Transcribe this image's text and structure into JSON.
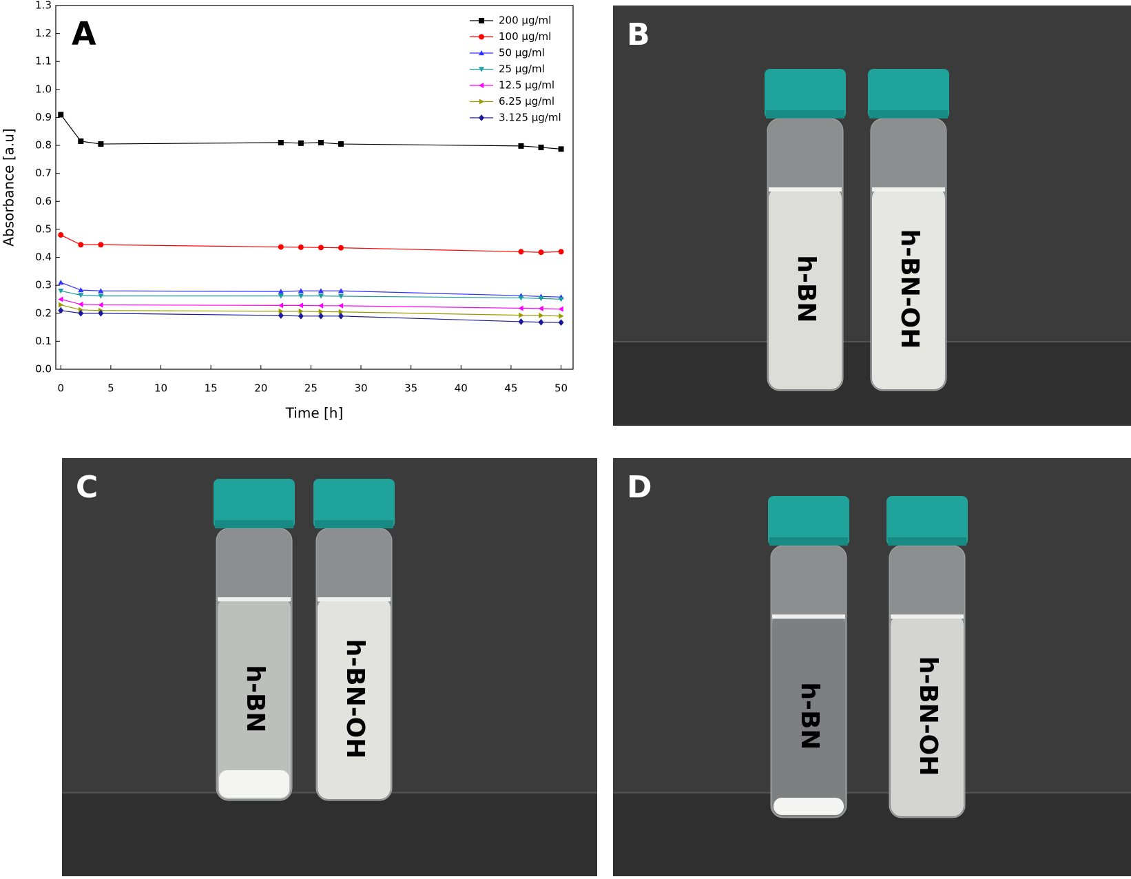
{
  "chart_data": {
    "type": "line",
    "panel_label": "A",
    "x_label": "Time [h]",
    "y_label": "Absorbance [a.u]",
    "x": [
      0,
      2,
      4,
      22,
      24,
      26,
      28,
      46,
      48,
      50
    ],
    "series": [
      {
        "name": "200 µg/ml",
        "color": "#000000",
        "marker": "square",
        "values": [
          0.91,
          0.815,
          0.805,
          0.81,
          0.808,
          0.81,
          0.805,
          0.798,
          0.793,
          0.787
        ]
      },
      {
        "name": "100 µg/ml",
        "color": "#ff0000",
        "marker": "circle",
        "values": [
          0.48,
          0.445,
          0.445,
          0.437,
          0.436,
          0.435,
          0.434,
          0.42,
          0.418,
          0.42
        ]
      },
      {
        "name": "50 µg/ml",
        "color": "#3030ff",
        "marker": "triangle-up",
        "values": [
          0.31,
          0.283,
          0.28,
          0.278,
          0.28,
          0.28,
          0.28,
          0.263,
          0.26,
          0.258
        ]
      },
      {
        "name": "25 µg/ml",
        "color": "#1a9e9e",
        "marker": "triangle-down",
        "values": [
          0.28,
          0.265,
          0.262,
          0.262,
          0.262,
          0.262,
          0.261,
          0.255,
          0.253,
          0.25
        ]
      },
      {
        "name": "12.5 µg/ml",
        "color": "#ff00ff",
        "marker": "triangle-left",
        "values": [
          0.25,
          0.232,
          0.23,
          0.228,
          0.228,
          0.227,
          0.227,
          0.218,
          0.217,
          0.215
        ]
      },
      {
        "name": "6.25 µg/ml",
        "color": "#999900",
        "marker": "triangle-right",
        "values": [
          0.23,
          0.212,
          0.21,
          0.207,
          0.207,
          0.206,
          0.205,
          0.193,
          0.192,
          0.19
        ]
      },
      {
        "name": "3.125 µg/ml",
        "color": "#1a1a99",
        "marker": "diamond",
        "values": [
          0.21,
          0.2,
          0.2,
          0.192,
          0.19,
          0.19,
          0.19,
          0.17,
          0.168,
          0.167
        ]
      }
    ],
    "xlim": [
      -0.5,
      51.2
    ],
    "xticks": [
      0,
      5,
      10,
      15,
      20,
      25,
      30,
      35,
      40,
      45,
      50
    ],
    "ylim": [
      0,
      1.3
    ],
    "yticks": [
      {
        "value": 0,
        "label": "0.0"
      },
      0.1,
      0.2,
      0.3,
      0.4,
      0.5,
      0.6,
      0.7,
      0.8,
      0.9,
      {
        "value": 1,
        "label": "1.0"
      },
      1.1,
      1.2,
      1.3
    ],
    "legend": "top-right",
    "grid": false
  },
  "panels": [
    {
      "label": "B",
      "vials": [
        "h-BN",
        "h-BN-OH"
      ]
    },
    {
      "label": "C",
      "vials": [
        "h-BN",
        "h-BN-OH"
      ]
    },
    {
      "label": "D",
      "vials": [
        "h-BN",
        "h-BN-OH"
      ]
    }
  ]
}
